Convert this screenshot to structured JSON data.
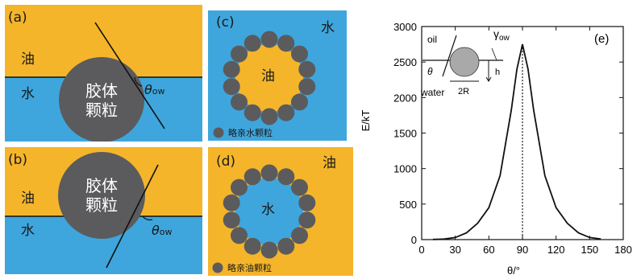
{
  "panels": {
    "a": {
      "tag": "(a)",
      "oil": "油",
      "water": "水",
      "particle_line1": "胶体",
      "particle_line2": "颗粒",
      "theta": "θ",
      "theta_sub": "ow"
    },
    "b": {
      "tag": "(b)",
      "oil": "油",
      "water": "水",
      "particle_line1": "胶体",
      "particle_line2": "颗粒",
      "theta": "θ",
      "theta_sub": "ow"
    },
    "c": {
      "tag": "(c)",
      "outer": "水",
      "inner": "油",
      "legend": "略亲水颗粒"
    },
    "d": {
      "tag": "(d)",
      "outer": "油",
      "inner": "水",
      "legend": "略亲油颗粒"
    }
  },
  "colors": {
    "oil": "#f5b52a",
    "water": "#3ea6dc",
    "particle": "#5b5b5d",
    "line": "#111111"
  },
  "chart_data": {
    "type": "line",
    "tag": "(e)",
    "xlabel": "θ/°",
    "ylabel": "E/kT",
    "xlim": [
      0,
      180
    ],
    "ylim": [
      0,
      3000
    ],
    "xticks": [
      0,
      30,
      60,
      90,
      120,
      150,
      180
    ],
    "yticks": [
      0,
      500,
      1000,
      1500,
      2000,
      2500,
      3000
    ],
    "marker_x": 90,
    "series": [
      {
        "x": [
          10,
          20,
          30,
          40,
          50,
          60,
          70,
          80,
          85,
          90,
          95,
          100,
          110,
          120,
          130,
          140,
          150,
          160
        ],
        "y": [
          2,
          8,
          30,
          95,
          230,
          450,
          900,
          1820,
          2400,
          2750,
          2400,
          1820,
          900,
          450,
          230,
          95,
          30,
          8
        ]
      }
    ],
    "inset": {
      "oil": "oil",
      "water": "water",
      "gamma": "γ",
      "gamma_sub": "ow",
      "theta": "θ",
      "h": "h",
      "radius": "2R"
    }
  }
}
